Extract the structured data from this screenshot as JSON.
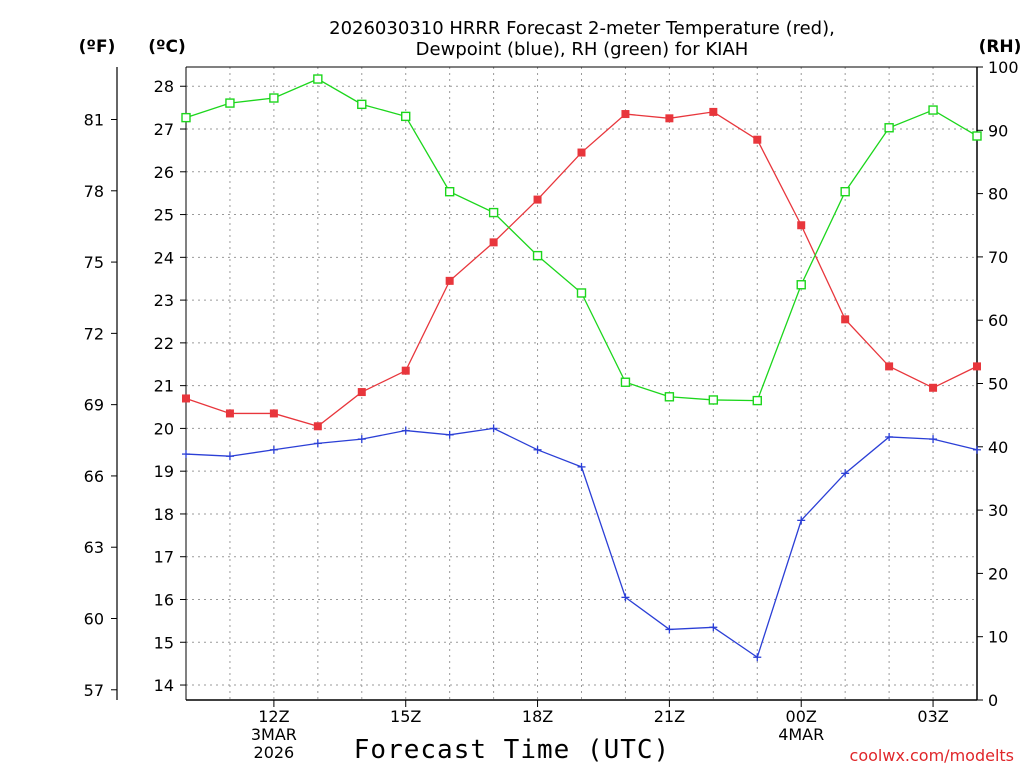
{
  "title": {
    "line1": "2026030310 HRRR Forecast 2-meter Temperature (red),",
    "line2": "Dewpoint (blue), RH (green) for KIAH"
  },
  "units": {
    "left_f": "(ºF)",
    "left_c": "(ºC)",
    "right_rh": "(RH)"
  },
  "xlabel": "Forecast Time (UTC)",
  "credit": "coolwx.com/modelts",
  "chart_data": {
    "type": "line",
    "x_hours": [
      10,
      11,
      12,
      13,
      14,
      15,
      16,
      17,
      18,
      19,
      20,
      21,
      22,
      23,
      24,
      25,
      26,
      27,
      28
    ],
    "xlim": [
      10,
      28
    ],
    "x_ticks": [
      {
        "hour": 12,
        "lines": [
          "12Z",
          "3MAR",
          "2026"
        ]
      },
      {
        "hour": 15,
        "lines": [
          "15Z"
        ]
      },
      {
        "hour": 18,
        "lines": [
          "18Z"
        ]
      },
      {
        "hour": 21,
        "lines": [
          "21Z"
        ]
      },
      {
        "hour": 24,
        "lines": [
          "00Z",
          "4MAR"
        ]
      },
      {
        "hour": 27,
        "lines": [
          "03Z"
        ]
      }
    ],
    "celsius_axis": {
      "range": [
        13.65,
        28.45
      ],
      "ticks": [
        14,
        15,
        16,
        17,
        18,
        19,
        20,
        21,
        22,
        23,
        24,
        25,
        26,
        27,
        28
      ]
    },
    "fahrenheit_axis": {
      "ticks": [
        57,
        60,
        63,
        66,
        69,
        72,
        75,
        78,
        81
      ]
    },
    "rh_axis": {
      "range": [
        0,
        100
      ],
      "ticks": [
        0,
        10,
        20,
        30,
        40,
        50,
        60,
        70,
        80,
        90,
        100
      ]
    },
    "series": [
      {
        "name": "Temperature",
        "axis": "C",
        "color": "#e8363c",
        "marker": "filled-square",
        "values": [
          20.7,
          20.35,
          20.35,
          20.05,
          20.85,
          21.35,
          23.45,
          24.35,
          25.35,
          26.45,
          27.35,
          27.25,
          27.4,
          26.75,
          24.75,
          22.55,
          21.45,
          20.95,
          21.45
        ]
      },
      {
        "name": "Dewpoint",
        "axis": "C",
        "color": "#2b3fd6",
        "marker": "plus",
        "values": [
          19.4,
          19.35,
          19.5,
          19.65,
          19.75,
          19.95,
          19.85,
          20.0,
          19.5,
          19.1,
          16.05,
          15.3,
          15.35,
          14.65,
          17.85,
          18.95,
          19.8,
          19.75,
          19.5
        ]
      },
      {
        "name": "RH",
        "axis": "RH",
        "color": "#1cd61c",
        "marker": "open-square",
        "values": [
          92,
          94.3,
          95.1,
          98.1,
          94.1,
          92.2,
          80.3,
          77,
          70.2,
          64.3,
          50.2,
          47.9,
          47.4,
          47.3,
          65.6,
          80.3,
          90.4,
          93.2,
          89.1
        ]
      }
    ]
  }
}
